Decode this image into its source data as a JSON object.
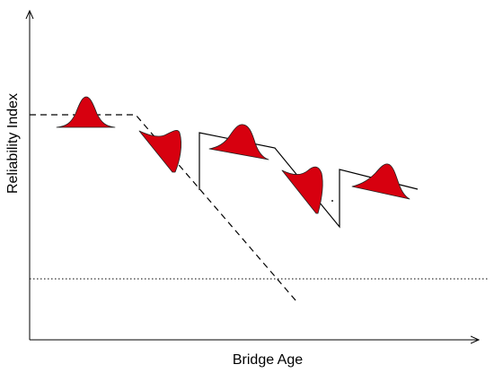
{
  "figure": {
    "x_axis_label": "Bridge Age",
    "y_axis_label": "Reliability Index"
  },
  "colors": {
    "distribution_fill": "#d7000f",
    "lines": "#000000"
  },
  "legend": []
}
